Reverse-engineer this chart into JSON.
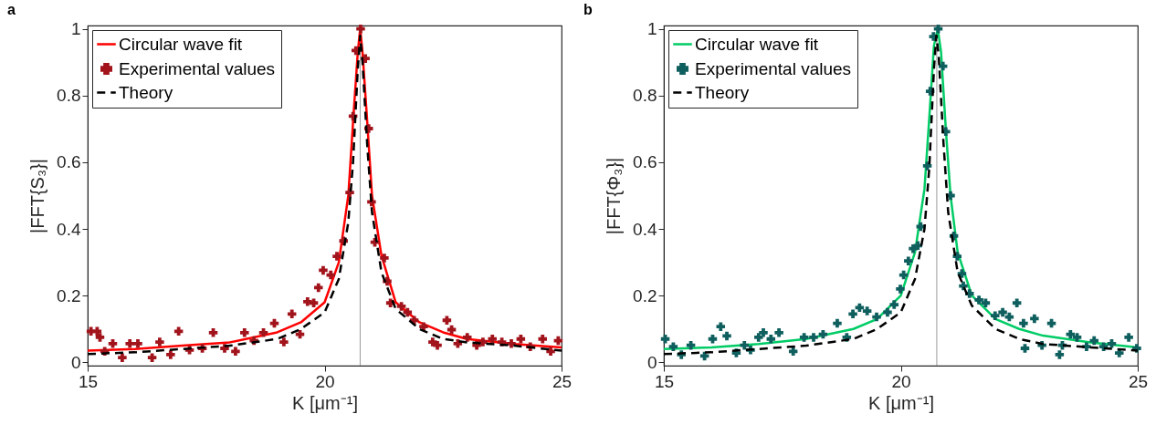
{
  "chart_data": [
    {
      "type": "line",
      "title": "a",
      "xlabel": "K [μm⁻¹]",
      "ylabel": "|FFT{S₃}|",
      "xlim": [
        15,
        25
      ],
      "ylim": [
        -0.01,
        1.01
      ],
      "xticks": [
        15,
        20,
        25
      ],
      "yticks": [
        0,
        0.2,
        0.4,
        0.6,
        0.8,
        1
      ],
      "grid": false,
      "legend": "top left",
      "ref_lines": [
        {
          "axis": "x",
          "value": 20.75,
          "color": "#808080"
        }
      ],
      "series": [
        {
          "name": "Circular wave fit",
          "color": "#ff0000",
          "line_style": "solid",
          "x": [
            15,
            16,
            17,
            18,
            19,
            19.5,
            20,
            20.3,
            20.5,
            20.6,
            20.7,
            20.75,
            20.8,
            20.9,
            21.0,
            21.2,
            21.5,
            22,
            22.5,
            23,
            24,
            25
          ],
          "values": [
            0.035,
            0.04,
            0.05,
            0.06,
            0.09,
            0.12,
            0.18,
            0.3,
            0.5,
            0.72,
            0.93,
            1.0,
            0.93,
            0.72,
            0.5,
            0.32,
            0.18,
            0.12,
            0.09,
            0.07,
            0.055,
            0.045
          ]
        },
        {
          "name": "Experimental values",
          "type": "scatter",
          "marker": "cross",
          "color": "#a2141c",
          "x": [
            15.07,
            15.2,
            15.26,
            15.36,
            15.53,
            15.73,
            15.89,
            16.06,
            16.36,
            16.52,
            16.75,
            16.92,
            17.15,
            17.42,
            17.65,
            17.89,
            18.12,
            18.31,
            18.51,
            18.71,
            18.94,
            19.14,
            19.31,
            19.48,
            19.64,
            19.77,
            19.87,
            19.97,
            20.13,
            20.26,
            20.4,
            20.53,
            20.6,
            20.66,
            20.76,
            20.86,
            20.93,
            20.99,
            21.06,
            21.26,
            21.32,
            21.39,
            21.62,
            21.75,
            21.89,
            22.09,
            22.28,
            22.38,
            22.58,
            22.68,
            22.81,
            23.01,
            23.21,
            23.34,
            23.54,
            23.74,
            23.94,
            24.14,
            24.34,
            24.6,
            24.77,
            24.93
          ],
          "values": [
            0.093,
            0.093,
            0.075,
            0.033,
            0.056,
            0.014,
            0.056,
            0.056,
            0.014,
            0.061,
            0.023,
            0.093,
            0.037,
            0.042,
            0.089,
            0.042,
            0.033,
            0.089,
            0.065,
            0.089,
            0.117,
            0.061,
            0.145,
            0.084,
            0.182,
            0.178,
            0.224,
            0.276,
            0.262,
            0.318,
            0.364,
            0.509,
            0.738,
            0.935,
            1.0,
            0.911,
            0.701,
            0.481,
            0.36,
            0.313,
            0.243,
            0.178,
            0.168,
            0.15,
            0.126,
            0.107,
            0.061,
            0.051,
            0.126,
            0.098,
            0.056,
            0.075,
            0.051,
            0.061,
            0.07,
            0.061,
            0.056,
            0.07,
            0.047,
            0.07,
            0.033,
            0.065
          ]
        },
        {
          "name": "Theory",
          "color": "#000000",
          "line_style": "dashed",
          "x": [
            15,
            16,
            17,
            18,
            19,
            19.5,
            20,
            20.3,
            20.5,
            20.6,
            20.7,
            20.75,
            20.8,
            20.9,
            21.0,
            21.2,
            21.5,
            22,
            22.5,
            23,
            24,
            25
          ],
          "values": [
            0.025,
            0.03,
            0.04,
            0.05,
            0.07,
            0.1,
            0.15,
            0.25,
            0.42,
            0.6,
            0.88,
            0.98,
            0.9,
            0.65,
            0.45,
            0.27,
            0.16,
            0.1,
            0.07,
            0.06,
            0.05,
            0.035
          ]
        }
      ]
    },
    {
      "type": "line",
      "title": "b",
      "xlabel": "K [μm⁻¹]",
      "ylabel": "|FFT{Φ₃}|",
      "xlim": [
        15,
        25
      ],
      "ylim": [
        -0.01,
        1.01
      ],
      "xticks": [
        15,
        20,
        25
      ],
      "yticks": [
        0,
        0.2,
        0.4,
        0.6,
        0.8,
        1
      ],
      "grid": false,
      "legend": "top left",
      "ref_lines": [
        {
          "axis": "x",
          "value": 20.76,
          "color": "#808080"
        }
      ],
      "series": [
        {
          "name": "Circular wave fit",
          "color": "#00cc66",
          "line_style": "solid",
          "x": [
            15,
            16,
            17,
            18,
            19,
            19.5,
            20,
            20.3,
            20.5,
            20.6,
            20.7,
            20.78,
            20.85,
            20.95,
            21.05,
            21.2,
            21.5,
            22,
            22.5,
            23,
            24,
            25
          ],
          "values": [
            0.04,
            0.045,
            0.055,
            0.07,
            0.1,
            0.13,
            0.2,
            0.33,
            0.52,
            0.73,
            0.95,
            1.0,
            0.93,
            0.7,
            0.5,
            0.33,
            0.2,
            0.13,
            0.1,
            0.08,
            0.06,
            0.045
          ]
        },
        {
          "name": "Experimental values",
          "type": "scatter",
          "marker": "cross",
          "color": "#0f5f5f",
          "x": [
            15.03,
            15.2,
            15.37,
            15.57,
            15.86,
            16.03,
            16.2,
            16.33,
            16.53,
            16.7,
            16.83,
            17.0,
            17.1,
            17.26,
            17.43,
            17.73,
            17.96,
            18.16,
            18.36,
            18.66,
            18.86,
            18.99,
            19.13,
            19.29,
            19.49,
            19.72,
            19.86,
            19.99,
            20.06,
            20.16,
            20.26,
            20.36,
            20.42,
            20.56,
            20.62,
            20.69,
            20.79,
            20.89,
            20.95,
            21.05,
            21.12,
            21.19,
            21.29,
            21.32,
            21.45,
            21.65,
            21.79,
            21.99,
            22.15,
            22.29,
            22.45,
            22.59,
            22.62,
            22.82,
            22.98,
            23.18,
            23.35,
            23.41,
            23.58,
            23.72,
            23.92,
            24.08,
            24.28,
            24.45,
            24.61,
            24.81,
            24.98
          ],
          "values": [
            0.07,
            0.047,
            0.023,
            0.051,
            0.019,
            0.07,
            0.107,
            0.079,
            0.028,
            0.051,
            0.037,
            0.075,
            0.089,
            0.07,
            0.089,
            0.033,
            0.075,
            0.075,
            0.084,
            0.117,
            0.075,
            0.145,
            0.164,
            0.154,
            0.136,
            0.15,
            0.173,
            0.22,
            0.262,
            0.304,
            0.341,
            0.35,
            0.407,
            0.589,
            0.813,
            0.977,
            1.0,
            0.888,
            0.692,
            0.5,
            0.379,
            0.318,
            0.266,
            0.229,
            0.206,
            0.187,
            0.178,
            0.14,
            0.15,
            0.136,
            0.178,
            0.117,
            0.042,
            0.131,
            0.051,
            0.117,
            0.023,
            0.051,
            0.084,
            0.075,
            0.047,
            0.065,
            0.047,
            0.056,
            0.028,
            0.075,
            0.042
          ]
        },
        {
          "name": "Theory",
          "color": "#000000",
          "line_style": "dashed",
          "x": [
            15,
            16,
            17,
            18,
            19,
            19.5,
            20,
            20.3,
            20.5,
            20.6,
            20.7,
            20.75,
            20.8,
            20.9,
            21.0,
            21.2,
            21.5,
            22,
            22.5,
            23,
            24,
            25
          ],
          "values": [
            0.025,
            0.03,
            0.04,
            0.05,
            0.07,
            0.1,
            0.15,
            0.25,
            0.4,
            0.58,
            0.88,
            0.98,
            0.92,
            0.66,
            0.45,
            0.27,
            0.17,
            0.1,
            0.07,
            0.055,
            0.045,
            0.035
          ]
        }
      ]
    }
  ]
}
